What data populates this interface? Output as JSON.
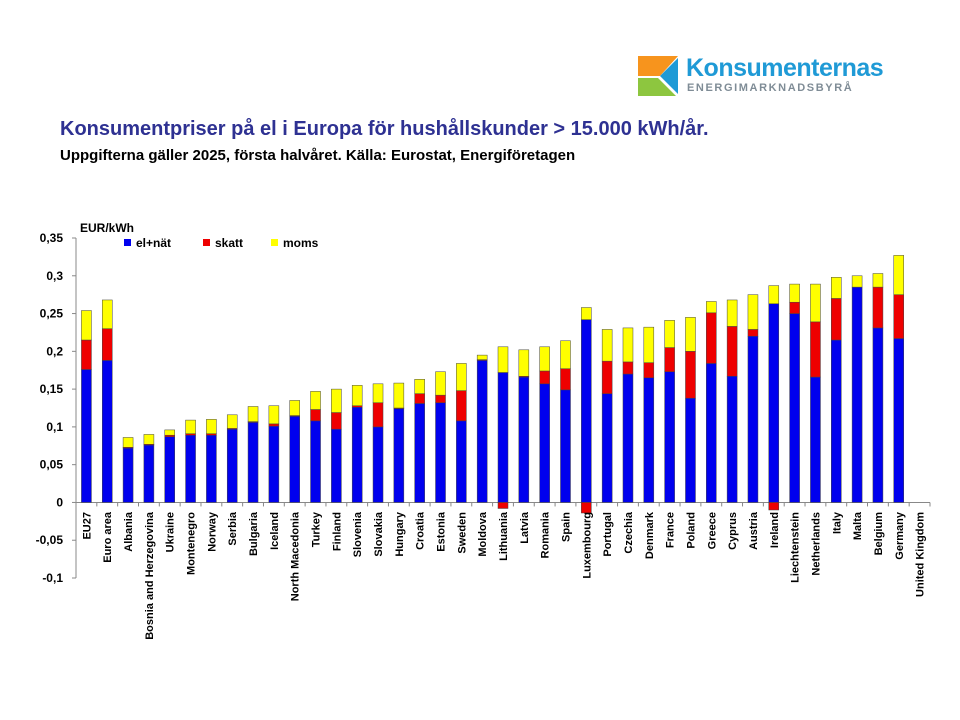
{
  "logo": {
    "name": "Konsumenternas",
    "subtitle": "ENERGIMARKNADSBYRÅ",
    "colors": [
      "#f7941d",
      "#1f9ad6",
      "#8dc63f"
    ]
  },
  "header": {
    "title": "Konsumentpriser på el i Europa för hushållskunder > 15.000 kWh/år.",
    "subtitle": "Uppgifterna gäller 2025, första halvåret. Källa: Eurostat, Energiföretagen"
  },
  "chart_data": {
    "type": "bar",
    "stacked": true,
    "unit_label": "EUR/kWh",
    "ylim": [
      -0.1,
      0.35
    ],
    "yticks": [
      0.35,
      0.3,
      0.25,
      0.2,
      0.15,
      0.1,
      0.05,
      0,
      -0.05,
      -0.1
    ],
    "ytick_labels": [
      "0,35",
      "0,3",
      "0,25",
      "0,2",
      "0,15",
      "0,1",
      "0,05",
      "0",
      "-0,05",
      "-0,1"
    ],
    "categories": [
      "EU27",
      "Euro area",
      "Albania",
      "Bosnia and Herzegovina",
      "Ukraine",
      "Montenegro",
      "Norway",
      "Serbia",
      "Bulgaria",
      "Iceland",
      "North Macedonia",
      "Turkey",
      "Finland",
      "Slovenia",
      "Slovakia",
      "Hungary",
      "Croatia",
      "Estonia",
      "Sweden",
      "Moldova",
      "Lithuania",
      "Latvia",
      "Romania",
      "Spain",
      "Luxembourg",
      "Portugal",
      "Czechia",
      "Denmark",
      "France",
      "Poland",
      "Greece",
      "Cyprus",
      "Austria",
      "Ireland",
      "Liechtenstein",
      "Netherlands",
      "Italy",
      "Malta",
      "Belgium",
      "Germany",
      "United Kingdom"
    ],
    "series": [
      {
        "name": "el+nät",
        "color": "#0000ee",
        "values": [
          0.176,
          0.188,
          0.072,
          0.076,
          0.087,
          0.089,
          0.089,
          0.097,
          0.106,
          0.101,
          0.114,
          0.108,
          0.097,
          0.126,
          0.1,
          0.124,
          0.131,
          0.132,
          0.108,
          0.188,
          0.172,
          0.166,
          0.157,
          0.149,
          0.242,
          0.144,
          0.17,
          0.165,
          0.173,
          0.138,
          0.184,
          0.167,
          0.22,
          0.263,
          0.25,
          0.166,
          0.215,
          0.285,
          0.231,
          0.217,
          0
        ]
      },
      {
        "name": "skatt",
        "color": "#ee0000",
        "values": [
          0.039,
          0.042,
          0.001,
          0.001,
          0.002,
          0.002,
          0.002,
          0.001,
          0.001,
          0.003,
          0.001,
          0.015,
          0.022,
          0.002,
          0.032,
          0.001,
          0.013,
          0.01,
          0.04,
          0.001,
          -0.008,
          0.001,
          0.017,
          0.028,
          -0.014,
          0.043,
          0.016,
          0.02,
          0.032,
          0.062,
          0.067,
          0.066,
          0.009,
          -0.01,
          0.015,
          0.073,
          0.055,
          0,
          0.054,
          0.058,
          0
        ]
      },
      {
        "name": "moms",
        "color": "#ffff00",
        "values": [
          0.039,
          0.038,
          0.013,
          0.013,
          0.007,
          0.018,
          0.019,
          0.018,
          0.02,
          0.024,
          0.02,
          0.024,
          0.031,
          0.027,
          0.025,
          0.033,
          0.019,
          0.031,
          0.036,
          0.006,
          0.034,
          0.035,
          0.032,
          0.037,
          0.016,
          0.042,
          0.045,
          0.047,
          0.036,
          0.045,
          0.015,
          0.035,
          0.046,
          0.024,
          0.024,
          0.05,
          0.028,
          0.015,
          0.018,
          0.052,
          0
        ]
      }
    ]
  }
}
